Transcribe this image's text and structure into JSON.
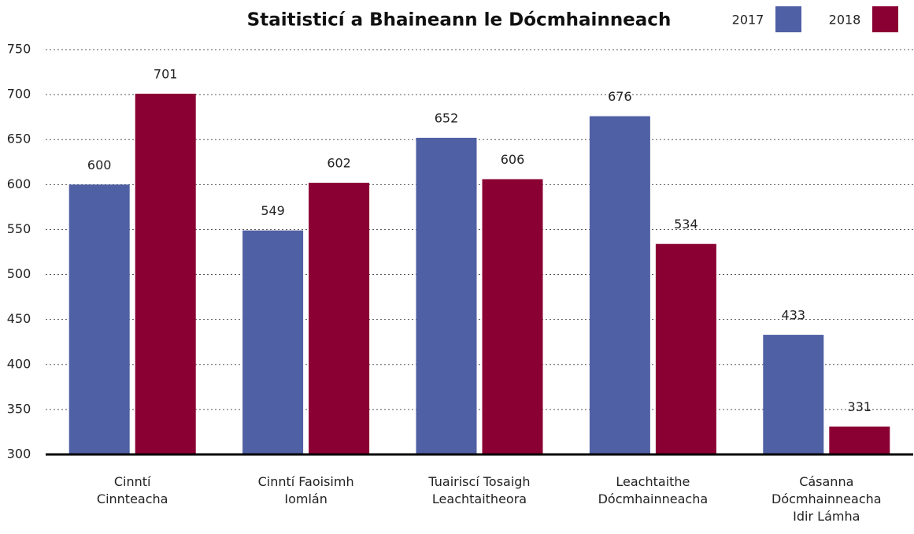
{
  "chart_data": {
    "type": "bar",
    "title": "Staitisticí a Bhaineann le Dócmhainneach",
    "categories": [
      "Cinntí\nCinnteacha",
      "Cinntí Faoisimh\nIomlán",
      "Tuairiscí Tosaigh\nLeachtaitheora",
      "Leachtaithe\nDócmhainneacha",
      "Cásanna\nDócmhainneacha\nIdir Lámha"
    ],
    "series": [
      {
        "name": "2017",
        "color": "#5060a5",
        "values": [
          600,
          549,
          652,
          676,
          433
        ]
      },
      {
        "name": "2018",
        "color": "#8b0033",
        "values": [
          701,
          602,
          606,
          534,
          331
        ]
      }
    ],
    "ylim": [
      300,
      750
    ],
    "yticks": [
      300,
      350,
      400,
      450,
      500,
      550,
      600,
      650,
      700,
      750
    ],
    "grid": true,
    "legend": "top-right"
  }
}
